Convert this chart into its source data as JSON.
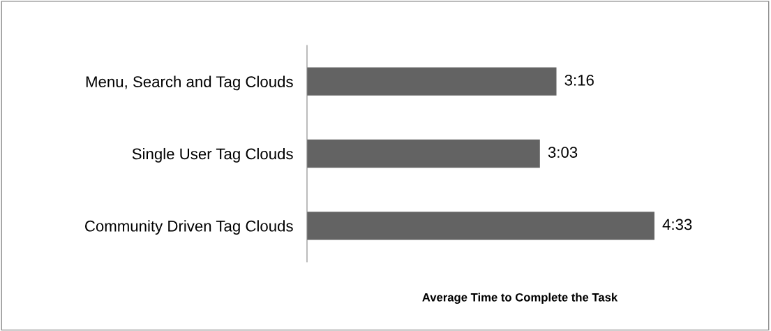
{
  "chart_data": {
    "type": "bar",
    "orientation": "horizontal",
    "xlabel": "Average Time to Complete the Task",
    "categories": [
      "Menu, Search and Tag Clouds",
      "Single User Tag Clouds",
      "Community Driven Tag Clouds"
    ],
    "values": [
      196,
      183,
      273
    ],
    "value_labels": [
      "3:16",
      "3:03",
      "4:33"
    ],
    "color": "#636363",
    "grid": false,
    "legend": false
  }
}
